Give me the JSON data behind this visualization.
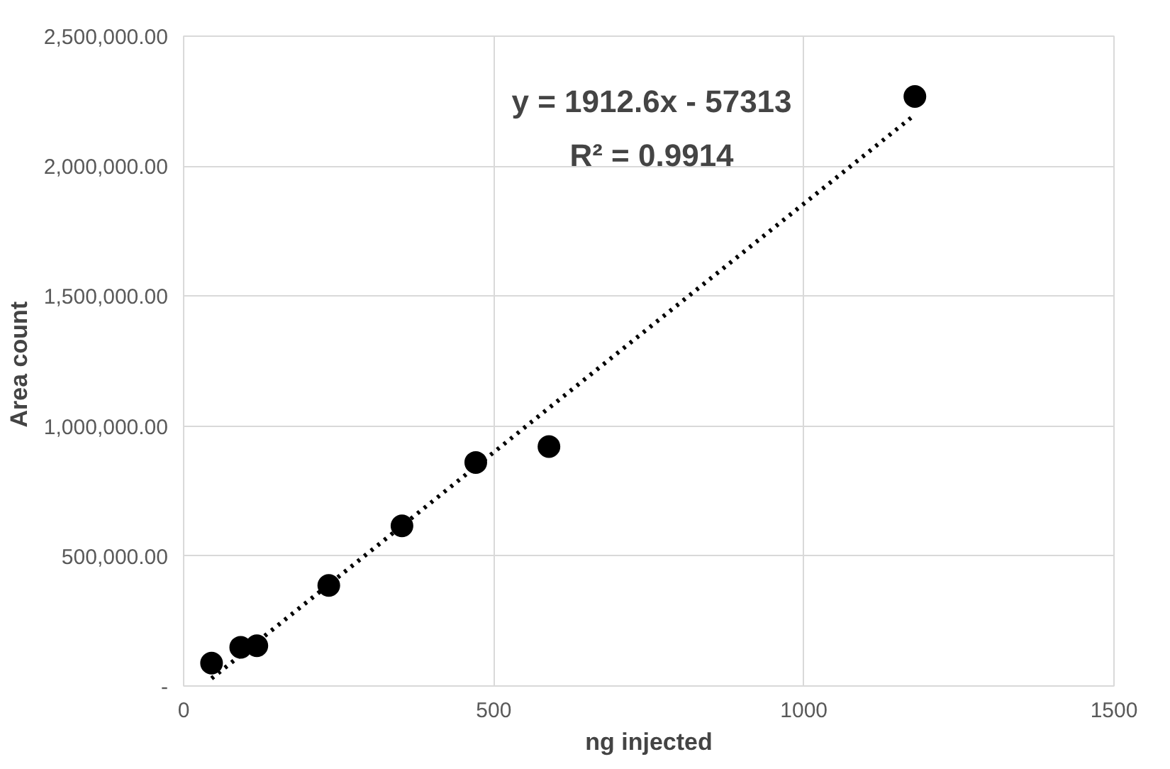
{
  "chart_data": {
    "type": "scatter",
    "xlabel": "ng injected",
    "ylabel": "Area  count",
    "annotations": [
      "y = 1912.6x - 57313",
      "R² = 0.9914"
    ],
    "marker": "circle",
    "grid": true,
    "xlim": [
      0,
      1500
    ],
    "xticks": [
      0,
      500,
      1000,
      1500
    ],
    "ylim": [
      0,
      2500000
    ],
    "yticks": [
      {
        "value": 0,
        "label": "-"
      },
      {
        "value": 500000,
        "label": "500,000.00"
      },
      {
        "value": 1000000,
        "label": "1,000,000.00"
      },
      {
        "value": 1500000,
        "label": "1,500,000.00"
      },
      {
        "value": 2000000,
        "label": "2,000,000.00"
      },
      {
        "value": 2500000,
        "label": "2,500,000.00"
      }
    ],
    "series": [
      {
        "color": "#000000",
        "x": [
          45,
          92,
          118,
          234,
          352,
          471,
          589,
          1179
        ],
        "values": [
          88000,
          149000,
          155000,
          387000,
          616000,
          860000,
          921000,
          2268000
        ]
      },
      {
        "type": "line",
        "line_style": "dotted",
        "marker": "none",
        "color": "#000000",
        "x": [
          45,
          1179
        ],
        "values": [
          29000,
          2198000
        ]
      }
    ]
  }
}
